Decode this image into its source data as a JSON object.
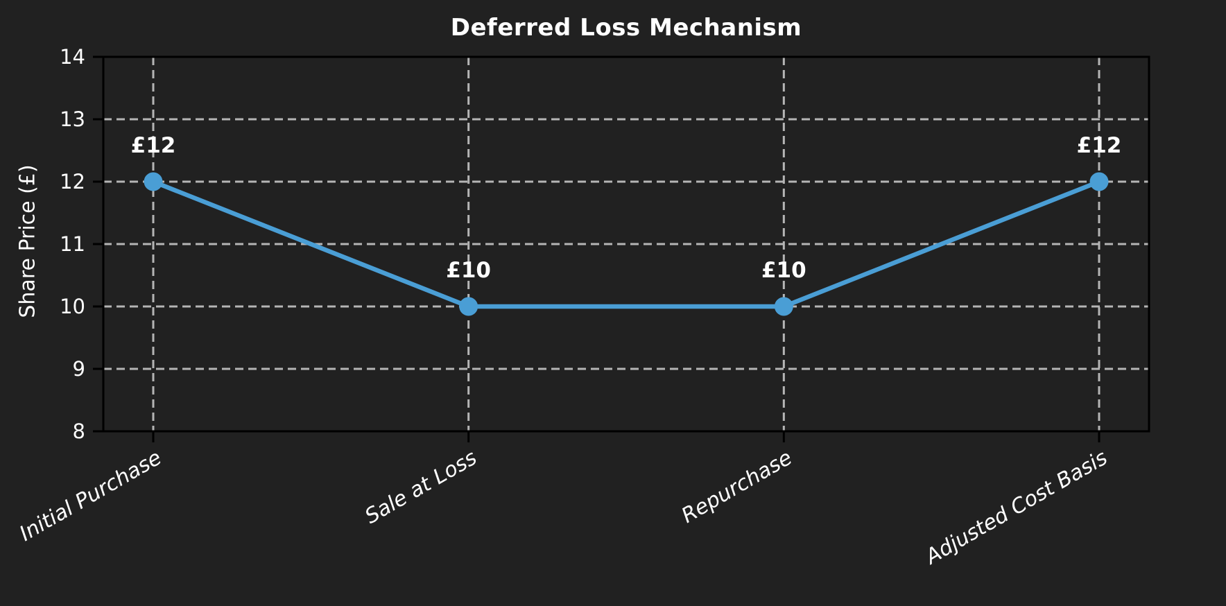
{
  "chart_data": {
    "type": "line",
    "title": "Deferred Loss Mechanism",
    "ylabel": "Share Price (£)",
    "xlabel": "",
    "categories": [
      "Initial Purchase",
      "Sale at Loss",
      "Repurchase",
      "Adjusted Cost Basis"
    ],
    "values": [
      12,
      10,
      10,
      12
    ],
    "point_labels": [
      "£12",
      "£10",
      "£10",
      "£12"
    ],
    "yticks": [
      8,
      9,
      10,
      11,
      12,
      13,
      14
    ],
    "ylim": [
      8,
      14
    ],
    "grid": "both, dashed",
    "legend_position": "none",
    "xtick_rotation_deg": 30,
    "colors": {
      "background": "#212121",
      "line": "#4a9ed5",
      "marker": "#4a9ed5",
      "grid": "#b5b5b5",
      "spine": "#000000",
      "text": "#ffffff"
    }
  }
}
